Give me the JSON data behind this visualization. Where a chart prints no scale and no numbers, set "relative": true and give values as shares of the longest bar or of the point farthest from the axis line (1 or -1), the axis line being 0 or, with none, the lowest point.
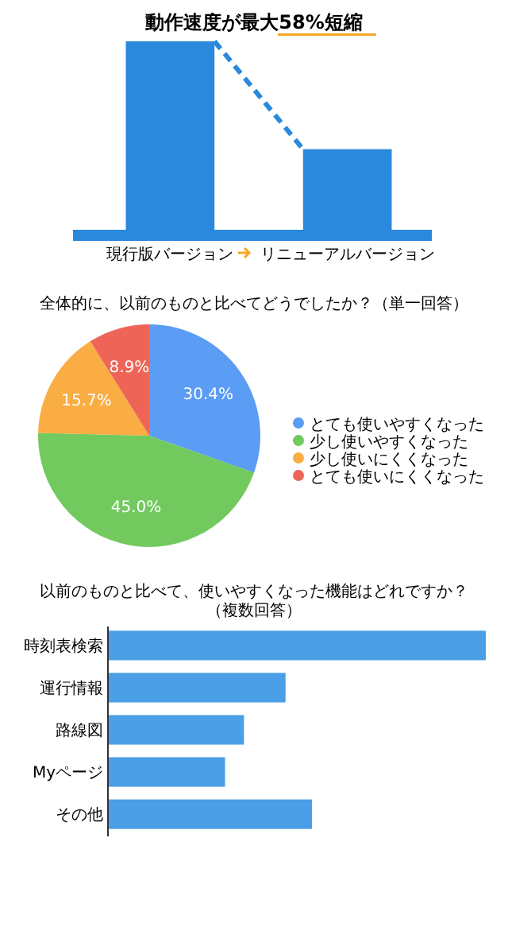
{
  "chart_data": [
    {
      "type": "bar",
      "title": "動作速度が最大58%短縮",
      "categories": [
        "現行版バージョン",
        "リニューアルバージョン"
      ],
      "relative": true,
      "values": [
        1,
        0.43
      ],
      "color": "#2a88dd"
    },
    {
      "type": "pie",
      "title": "全体的に、以前のものと比べてどうでしたか？（単一回答）",
      "categories": [
        "とても使いやすくなった",
        "少し使いやすくなった",
        "少し使いにくくなった",
        "とても使いにくくなった"
      ],
      "values": [
        30.4,
        45.0,
        15.7,
        8.9
      ],
      "value_labels": [
        "30.4%",
        "45.0%",
        "15.7%",
        "8.9%"
      ],
      "colors": [
        "#5b9cf4",
        "#72c95e",
        "#f9ad43",
        "#ee6558"
      ],
      "legend": "right"
    },
    {
      "type": "bar",
      "orientation": "horizontal",
      "title": "以前のものと比べて、使いやすくなった機能はどれですか？（複数回答）",
      "categories": [
        "時刻表検索",
        "運行情報",
        "路線図",
        "Myページ",
        "その他"
      ],
      "relative": true,
      "values": [
        1,
        0.47,
        0.36,
        0.31,
        0.54
      ],
      "color": "#4a9fe6"
    }
  ]
}
